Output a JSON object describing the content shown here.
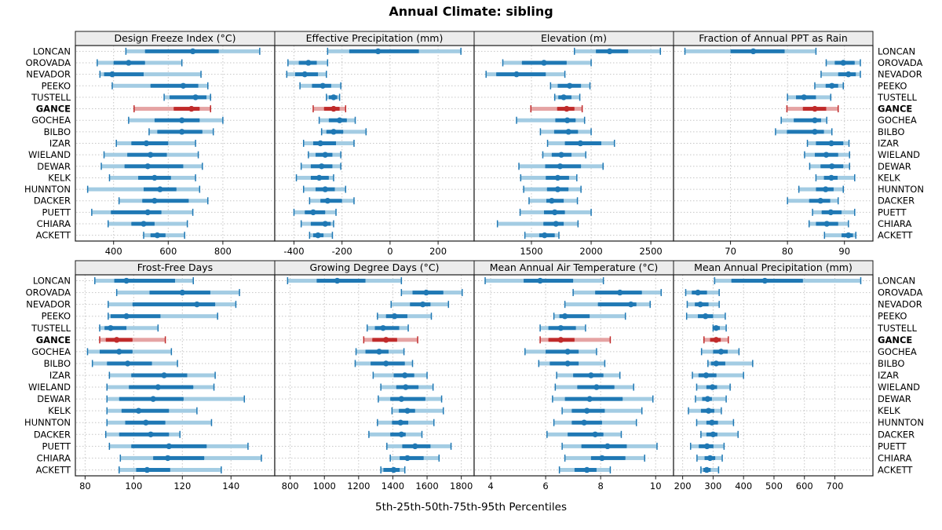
{
  "title": "Annual Climate: sibling",
  "footer": "5th-25th-50th-75th-95th Percentiles",
  "colors": {
    "blue": "#1f78b4",
    "blue_light": "#a3cce3",
    "red": "#c02b2b",
    "red_light": "#e5a3a3",
    "strip_bg": "#ececec",
    "grid": "#c6c6c6",
    "border": "#1a1a1a",
    "text": "#000000"
  },
  "chart_data": {
    "type": "percentile-dotplot",
    "percentiles": [
      5,
      25,
      50,
      75,
      95
    ],
    "legend_position": "none",
    "grid": "dotted-at-ticks",
    "highlight_station": "GANCE",
    "stations": [
      "LONCAN",
      "OROVADA",
      "NEVADOR",
      "PEEKO",
      "TUSTELL",
      "GANCE",
      "GOCHEA",
      "BILBO",
      "IZAR",
      "WIELAND",
      "DEWAR",
      "KELK",
      "HUNNTON",
      "DACKER",
      "PUETT",
      "CHIARA",
      "ACKETT"
    ],
    "panels": [
      {
        "title": "Design Freeze Index (°C)",
        "xlim": [
          260,
          990
        ],
        "ticks": [
          400,
          600,
          800
        ],
        "values": [
          [
            445,
            515,
            690,
            785,
            935
          ],
          [
            340,
            400,
            455,
            515,
            650
          ],
          [
            350,
            365,
            395,
            510,
            720
          ],
          [
            395,
            535,
            655,
            710,
            745
          ],
          [
            585,
            605,
            700,
            740,
            755
          ],
          [
            475,
            620,
            685,
            715,
            755
          ],
          [
            455,
            550,
            650,
            715,
            800
          ],
          [
            530,
            560,
            650,
            725,
            765
          ],
          [
            410,
            465,
            520,
            600,
            700
          ],
          [
            365,
            450,
            535,
            595,
            710
          ],
          [
            355,
            440,
            525,
            655,
            725
          ],
          [
            385,
            490,
            550,
            610,
            700
          ],
          [
            305,
            510,
            570,
            630,
            715
          ],
          [
            420,
            505,
            550,
            675,
            745
          ],
          [
            320,
            390,
            525,
            575,
            690
          ],
          [
            380,
            465,
            510,
            550,
            670
          ],
          [
            510,
            535,
            560,
            590,
            660
          ]
        ]
      },
      {
        "title": "Effective Precipitation (mm)",
        "xlim": [
          -480,
          350
        ],
        "ticks": [
          -400,
          -200,
          0,
          200
        ],
        "values": [
          [
            -260,
            -170,
            -50,
            120,
            295
          ],
          [
            -425,
            -380,
            -340,
            -305,
            -260
          ],
          [
            -430,
            -395,
            -355,
            -300,
            -265
          ],
          [
            -375,
            -325,
            -280,
            -245,
            -205
          ],
          [
            -265,
            -255,
            -235,
            -220,
            -210
          ],
          [
            -320,
            -275,
            -235,
            -210,
            -185
          ],
          [
            -295,
            -255,
            -210,
            -180,
            -145
          ],
          [
            -285,
            -265,
            -235,
            -195,
            -100
          ],
          [
            -360,
            -320,
            -290,
            -225,
            -150
          ],
          [
            -340,
            -310,
            -270,
            -240,
            -205
          ],
          [
            -370,
            -330,
            -285,
            -240,
            -205
          ],
          [
            -390,
            -330,
            -295,
            -255,
            -235
          ],
          [
            -360,
            -310,
            -270,
            -230,
            -185
          ],
          [
            -335,
            -290,
            -260,
            -200,
            -150
          ],
          [
            -400,
            -355,
            -320,
            -270,
            -225
          ],
          [
            -370,
            -330,
            -270,
            -247,
            -235
          ],
          [
            -335,
            -320,
            -300,
            -277,
            -240
          ]
        ]
      },
      {
        "title": "Elevation (m)",
        "xlim": [
          1020,
          2690
        ],
        "ticks": [
          1500,
          2000,
          2500
        ],
        "values": [
          [
            1860,
            2040,
            2155,
            2310,
            2580
          ],
          [
            1260,
            1420,
            1605,
            1795,
            2000
          ],
          [
            1120,
            1205,
            1375,
            1620,
            1780
          ],
          [
            1660,
            1720,
            1820,
            1915,
            1990
          ],
          [
            1695,
            1725,
            1770,
            1835,
            1905
          ],
          [
            1495,
            1715,
            1795,
            1860,
            1925
          ],
          [
            1375,
            1700,
            1800,
            1870,
            1945
          ],
          [
            1575,
            1690,
            1810,
            1890,
            2000
          ],
          [
            1635,
            1780,
            1910,
            2085,
            2195
          ],
          [
            1595,
            1670,
            1750,
            1835,
            1955
          ],
          [
            1395,
            1615,
            1740,
            1915,
            2100
          ],
          [
            1410,
            1620,
            1720,
            1815,
            1880
          ],
          [
            1435,
            1630,
            1720,
            1810,
            1915
          ],
          [
            1480,
            1625,
            1670,
            1770,
            1885
          ],
          [
            1405,
            1605,
            1695,
            1780,
            2000
          ],
          [
            1215,
            1600,
            1705,
            1770,
            1890
          ],
          [
            1445,
            1565,
            1610,
            1695,
            1730
          ]
        ]
      },
      {
        "title": "Fraction of Annual PPT as Rain",
        "xlim": [
          60,
          95
        ],
        "ticks": [
          70,
          80,
          90
        ],
        "values": [
          [
            62,
            70,
            74,
            79.5,
            85
          ],
          [
            86.8,
            88.3,
            89.8,
            91.8,
            92.8
          ],
          [
            85.9,
            88.9,
            90.7,
            92,
            92.8
          ],
          [
            84.8,
            86.7,
            87.8,
            88.9,
            89.8
          ],
          [
            80,
            81.5,
            82.9,
            85,
            87.6
          ],
          [
            79.9,
            82.7,
            84.8,
            86.8,
            88.9
          ],
          [
            78.9,
            81.1,
            84.8,
            85.9,
            86.9
          ],
          [
            77.9,
            79.9,
            84.8,
            86.4,
            87.8
          ],
          [
            83.5,
            85,
            87.7,
            89.8,
            90.8
          ],
          [
            83,
            84.8,
            86.8,
            88.9,
            90.9
          ],
          [
            83.9,
            85.8,
            87.8,
            89.8,
            90.9
          ],
          [
            85,
            86.4,
            87.7,
            88.8,
            91.8
          ],
          [
            82,
            85,
            86.7,
            88.1,
            89.8
          ],
          [
            80,
            83.8,
            85.8,
            87.5,
            88.9
          ],
          [
            84.4,
            86,
            87.6,
            89.5,
            91.8
          ],
          [
            83.8,
            85,
            86.9,
            88.9,
            90.7
          ],
          [
            86.5,
            89.5,
            90.7,
            91.5,
            92
          ]
        ]
      },
      {
        "title": "Frost-Free Days",
        "xlim": [
          76,
          158
        ],
        "ticks": [
          80,
          100,
          120,
          140
        ],
        "values": [
          [
            84,
            92,
            97,
            117,
            124.5
          ],
          [
            93,
            106.5,
            120,
            131.5,
            143.5
          ],
          [
            89.5,
            99.5,
            126,
            133.5,
            142
          ],
          [
            89.5,
            90.5,
            97,
            111,
            134.5
          ],
          [
            86,
            88,
            90.5,
            97,
            110
          ],
          [
            86,
            88.5,
            93,
            99.5,
            113
          ],
          [
            81,
            86,
            94,
            99.5,
            115.5
          ],
          [
            83,
            89,
            97.5,
            107.5,
            118
          ],
          [
            90,
            99,
            112.5,
            122,
            133.5
          ],
          [
            89,
            98,
            110,
            124.5,
            133
          ],
          [
            89,
            94,
            108,
            120.5,
            145.5
          ],
          [
            89,
            95,
            102,
            114.5,
            126
          ],
          [
            89,
            96.5,
            105,
            113,
            132
          ],
          [
            88.5,
            94,
            107,
            114.5,
            119
          ],
          [
            90,
            99,
            114.5,
            130,
            147
          ],
          [
            94.5,
            108,
            114,
            129,
            152.5
          ],
          [
            94,
            101,
            105.5,
            115,
            136
          ]
        ]
      },
      {
        "title": "Growing Degree Days (°C)",
        "xlim": [
          710,
          1875
        ],
        "ticks": [
          800,
          1000,
          1200,
          1400,
          1600,
          1800
        ],
        "values": [
          [
            785,
            955,
            1075,
            1240,
            1450
          ],
          [
            1450,
            1515,
            1595,
            1695,
            1805
          ],
          [
            1390,
            1500,
            1575,
            1620,
            1725
          ],
          [
            1310,
            1360,
            1410,
            1485,
            1625
          ],
          [
            1250,
            1295,
            1343,
            1437,
            1490
          ],
          [
            1230,
            1280,
            1360,
            1425,
            1545
          ],
          [
            1185,
            1240,
            1320,
            1375,
            1465
          ],
          [
            1180,
            1270,
            1360,
            1470,
            1515
          ],
          [
            1285,
            1405,
            1470,
            1525,
            1600
          ],
          [
            1330,
            1420,
            1475,
            1550,
            1635
          ],
          [
            1315,
            1385,
            1450,
            1590,
            1685
          ],
          [
            1395,
            1435,
            1485,
            1530,
            1695
          ],
          [
            1310,
            1395,
            1445,
            1490,
            1640
          ],
          [
            1260,
            1385,
            1450,
            1475,
            1570
          ],
          [
            1365,
            1455,
            1530,
            1620,
            1740
          ],
          [
            1385,
            1440,
            1485,
            1580,
            1670
          ],
          [
            1330,
            1345,
            1405,
            1440,
            1470
          ]
        ]
      },
      {
        "title": "Mean Annual Air Temperature (°C)",
        "xlim": [
          3.4,
          10.65
        ],
        "ticks": [
          4,
          6,
          8,
          10
        ],
        "values": [
          [
            3.8,
            5.2,
            5.8,
            7,
            8.1
          ],
          [
            7,
            7.8,
            8.7,
            9.5,
            10.2
          ],
          [
            6.7,
            7.9,
            9.1,
            9.3,
            9.8
          ],
          [
            6.3,
            6.5,
            6.7,
            7.6,
            8.9
          ],
          [
            5.8,
            6.1,
            6.55,
            7.1,
            7.45
          ],
          [
            5.8,
            6.1,
            6.55,
            7.05,
            8.35
          ],
          [
            5.25,
            6,
            6.8,
            7.2,
            7.85
          ],
          [
            5.75,
            6.15,
            6.8,
            7.2,
            8.15
          ],
          [
            6.4,
            7,
            7.65,
            8.1,
            8.7
          ],
          [
            6.35,
            7.15,
            7.85,
            8.5,
            9.2
          ],
          [
            6.25,
            6.7,
            7.6,
            8.8,
            9.9
          ],
          [
            6.6,
            6.95,
            7.5,
            8.15,
            9.5
          ],
          [
            6.3,
            6.95,
            7.4,
            8.05,
            9.3
          ],
          [
            6.05,
            6.8,
            7.8,
            8.1,
            8.75
          ],
          [
            6.6,
            7.3,
            8.25,
            8.95,
            10.05
          ],
          [
            6.7,
            7.65,
            8.05,
            8.9,
            9.6
          ],
          [
            6.5,
            7.05,
            7.5,
            7.85,
            8.35
          ]
        ]
      },
      {
        "title": "Mean Annual Precipitation (mm)",
        "xlim": [
          170,
          825
        ],
        "ticks": [
          200,
          300,
          400,
          500,
          600,
          700
        ],
        "values": [
          [
            305,
            360,
            470,
            595,
            785
          ],
          [
            210,
            230,
            250,
            280,
            320
          ],
          [
            215,
            240,
            258,
            285,
            320
          ],
          [
            213,
            250,
            275,
            300,
            340
          ],
          [
            300,
            303,
            310,
            322,
            343
          ],
          [
            270,
            290,
            310,
            325,
            350
          ],
          [
            262,
            300,
            326,
            348,
            385
          ],
          [
            283,
            293,
            310,
            340,
            430
          ],
          [
            232,
            252,
            277,
            311,
            400
          ],
          [
            246,
            278,
            298,
            313,
            356
          ],
          [
            242,
            264,
            282,
            296,
            343
          ],
          [
            219,
            260,
            285,
            304,
            327
          ],
          [
            246,
            278,
            296,
            316,
            367
          ],
          [
            260,
            278,
            300,
            314,
            382
          ],
          [
            226,
            253,
            280,
            301,
            336
          ],
          [
            247,
            272,
            290,
            307,
            330
          ],
          [
            260,
            268,
            279,
            292,
            318
          ]
        ]
      }
    ]
  }
}
